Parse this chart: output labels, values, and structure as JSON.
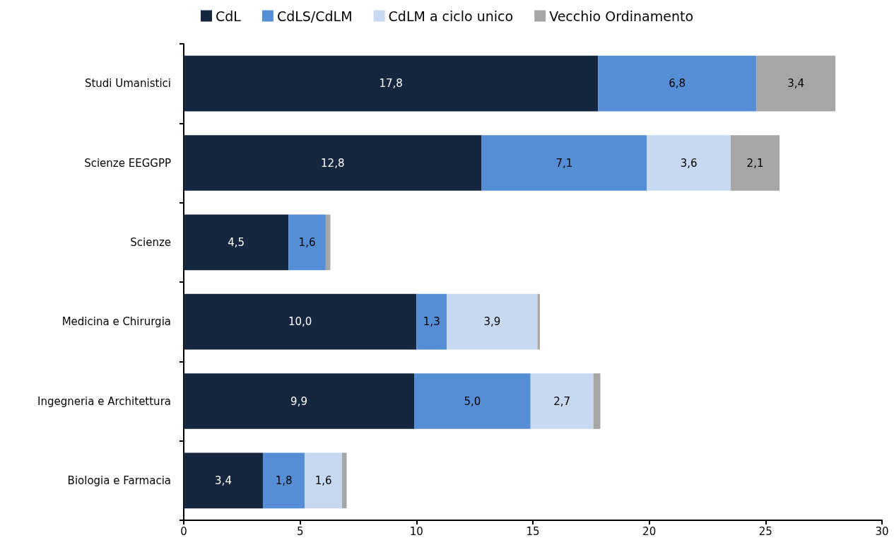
{
  "chart_data": {
    "type": "bar",
    "orientation": "horizontal",
    "stacked": true,
    "categories": [
      "Studi Umanistici",
      "Scienze EEGGPP",
      "Scienze",
      "Medicina e Chirurgia",
      "Ingegneria e Architettura",
      "Biologia e Farmacia"
    ],
    "series": [
      {
        "name": "CdL",
        "color": "#14273f",
        "values": [
          17.8,
          12.8,
          4.5,
          10.0,
          9.9,
          3.4
        ],
        "value_labels": [
          "17,8",
          "12,8",
          "4,5",
          "10,0",
          "9,9",
          "3,4"
        ]
      },
      {
        "name": "CdLS/CdLM",
        "color": "#558ed5",
        "values": [
          6.8,
          7.1,
          1.6,
          1.3,
          5.0,
          1.8
        ],
        "value_labels": [
          "6,8",
          "7,1",
          "1,6",
          "1,3",
          "5,0",
          "1,8"
        ]
      },
      {
        "name": "CdLM a ciclo unico",
        "color": "#c6d9f1",
        "values": [
          null,
          3.6,
          null,
          3.9,
          2.7,
          1.6
        ],
        "value_labels": [
          null,
          "3,6",
          null,
          "3,9",
          "2,7",
          "1,6"
        ]
      },
      {
        "name": "Vecchio Ordinamento",
        "color": "#a6a6a6",
        "values": [
          3.4,
          2.1,
          0.2,
          0.1,
          0.3,
          0.2
        ],
        "value_labels": [
          "3,4",
          "2,1",
          null,
          null,
          null,
          null
        ]
      }
    ],
    "xlim": [
      0,
      30
    ],
    "xticks": [
      0,
      5,
      10,
      15,
      20,
      25,
      30
    ],
    "grid": false,
    "legend": "top"
  }
}
